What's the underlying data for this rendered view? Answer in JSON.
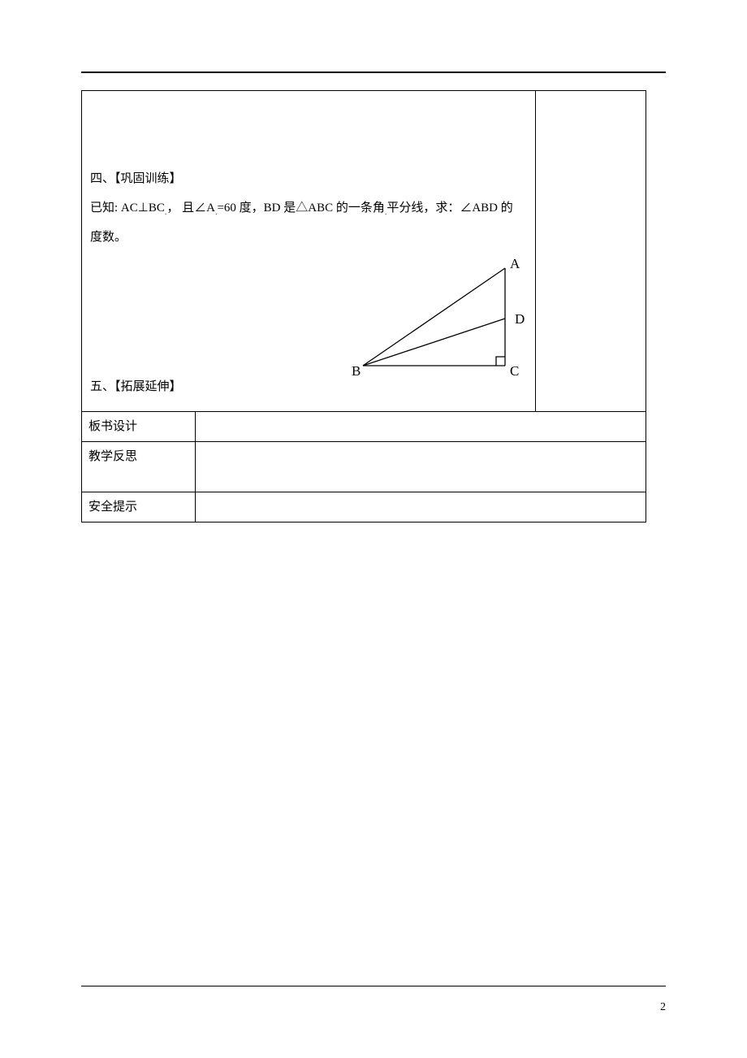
{
  "page_number": "2",
  "main": {
    "section4_title": "四、【巩固训练】",
    "problem_line1_pre": "已知: AC⊥BC",
    "problem_line1_mid": "， 且∠A",
    "problem_line1_post": "=60 度，BD 是△ABC 的一条角",
    "problem_line1_end": "平分线，求：∠ABD 的",
    "problem_line2": "度数。",
    "section5_title": "五、【拓展延伸】"
  },
  "diagram": {
    "A": "A",
    "B": "B",
    "C": "C",
    "D": "D",
    "stroke": "#000000",
    "stroke_width": 1.3
  },
  "footer_rows": [
    {
      "label": "板书设计",
      "value": "",
      "cls": "row-reg"
    },
    {
      "label": "教学反思",
      "value": "",
      "cls": "row-tall"
    },
    {
      "label": "安全提示",
      "value": "",
      "cls": "row-reg"
    }
  ]
}
